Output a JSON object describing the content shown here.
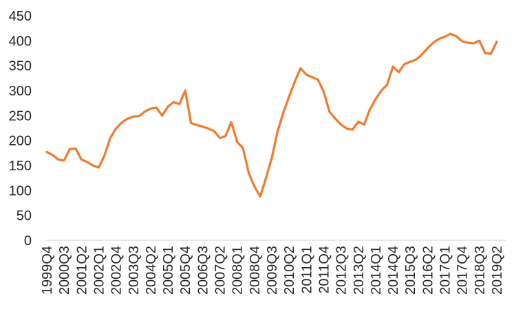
{
  "chart_data": {
    "type": "line",
    "title": "",
    "xlabel": "",
    "ylabel": "",
    "ylim": [
      0,
      450
    ],
    "ytick_step": 50,
    "grid": false,
    "legend": "none",
    "line_color": "#ED7D31",
    "axis_color": "#D9D9D9",
    "text_color": "#262626",
    "x": [
      "1999Q4",
      "2000Q1",
      "2000Q2",
      "2000Q3",
      "2000Q4",
      "2001Q1",
      "2001Q2",
      "2001Q3",
      "2001Q4",
      "2002Q1",
      "2002Q2",
      "2002Q3",
      "2002Q4",
      "2003Q1",
      "2003Q2",
      "2003Q3",
      "2003Q4",
      "2004Q1",
      "2004Q2",
      "2004Q3",
      "2004Q4",
      "2005Q1",
      "2005Q2",
      "2005Q3",
      "2005Q4",
      "2006Q1",
      "2006Q2",
      "2006Q3",
      "2006Q4",
      "2007Q1",
      "2007Q2",
      "2007Q3",
      "2007Q4",
      "2008Q1",
      "2008Q2",
      "2008Q3",
      "2008Q4",
      "2009Q1",
      "2009Q2",
      "2009Q3",
      "2009Q4",
      "2010Q1",
      "2010Q2",
      "2010Q3",
      "2010Q4",
      "2011Q1",
      "2011Q2",
      "2011Q3",
      "2011Q4",
      "2012Q1",
      "2012Q2",
      "2012Q3",
      "2012Q4",
      "2013Q1",
      "2013Q2",
      "2013Q3",
      "2013Q4",
      "2014Q1",
      "2014Q2",
      "2014Q3",
      "2014Q4",
      "2015Q1",
      "2015Q2",
      "2015Q3",
      "2015Q4",
      "2016Q1",
      "2016Q2",
      "2016Q3",
      "2016Q4",
      "2017Q1",
      "2017Q2",
      "2017Q3",
      "2017Q4",
      "2018Q1",
      "2018Q2",
      "2018Q3",
      "2018Q4",
      "2019Q1",
      "2019Q2"
    ],
    "values": [
      177,
      171,
      162,
      160,
      183,
      184,
      162,
      157,
      150,
      146,
      170,
      205,
      224,
      236,
      244,
      248,
      249,
      258,
      264,
      266,
      250,
      268,
      277,
      273,
      300,
      235,
      231,
      228,
      224,
      219,
      205,
      209,
      237,
      197,
      185,
      135,
      108,
      88,
      125,
      165,
      218,
      256,
      288,
      318,
      345,
      332,
      327,
      322,
      298,
      258,
      244,
      232,
      224,
      222,
      238,
      232,
      262,
      283,
      300,
      312,
      348,
      337,
      353,
      358,
      362,
      372,
      385,
      396,
      404,
      408,
      414,
      409,
      399,
      396,
      395,
      400,
      375,
      374,
      398
    ],
    "x_tick_labels": [
      "1999Q4",
      "2000Q3",
      "2001Q2",
      "2002Q1",
      "2002Q4",
      "2003Q3",
      "2004Q2",
      "2005Q1",
      "2005Q4",
      "2006Q3",
      "2007Q2",
      "2008Q1",
      "2008Q4",
      "2009Q3",
      "2010Q2",
      "2011Q1",
      "2011Q4",
      "2012Q3",
      "2013Q2",
      "2014Q1",
      "2014Q4",
      "2015Q3",
      "2016Q2",
      "2017Q1",
      "2017Q4",
      "2018Q3",
      "2019Q2"
    ],
    "x_tick_every": 3,
    "y_tick_labels": [
      "0",
      "50",
      "100",
      "150",
      "200",
      "250",
      "300",
      "350",
      "400",
      "450"
    ]
  }
}
